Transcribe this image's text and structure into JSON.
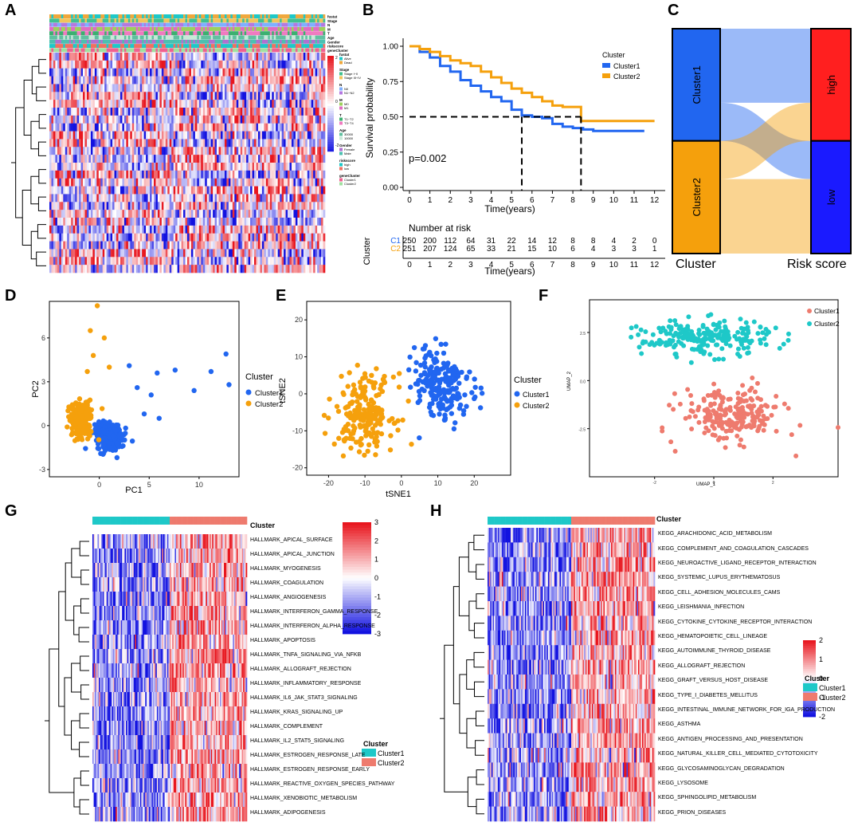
{
  "panels": {
    "A": "A",
    "B": "B",
    "C": "C",
    "D": "D",
    "E": "E",
    "F": "F",
    "G": "G",
    "H": "H"
  },
  "colors": {
    "cluster1": "#2166f0",
    "cluster2": "#f5a00c",
    "teal": "#1ec8c8",
    "salmon": "#ee7b6e",
    "hmHigh": "#e8161e",
    "hmLow": "#1212e0",
    "high": "#ff1f1f",
    "low": "#1a1aff"
  },
  "panelA": {
    "annotation_rows": [
      "fustat",
      "Stage",
      "N",
      "M",
      "T",
      "Age",
      "Gender",
      "riskscore",
      "geneCluster"
    ],
    "legend": [
      {
        "title": "fustat",
        "items": [
          "Alive",
          "Dead"
        ]
      },
      {
        "title": "Stage",
        "items": [
          "Stage I~II",
          "Stage III~IV"
        ]
      },
      {
        "title": "N",
        "items": [
          "N0",
          "N1~N2"
        ]
      },
      {
        "title": "M",
        "items": [
          "M0",
          "M1"
        ]
      },
      {
        "title": "T",
        "items": [
          "T1~T2",
          "T3~T4"
        ]
      },
      {
        "title": "Age",
        "items": [
          "30000",
          "10000"
        ]
      },
      {
        "title": "Gender",
        "items": [
          "Female",
          "Male"
        ]
      },
      {
        "title": "riskscore",
        "items": [
          "high",
          "low"
        ]
      },
      {
        "title": "geneCluster",
        "items": [
          "Cluster1",
          "Cluster2"
        ]
      }
    ],
    "scale_ticks": [
      "2",
      "0",
      "-2"
    ]
  },
  "chart_data": [
    {
      "panel": "B",
      "type": "line",
      "title": "",
      "xlabel": "Time(years)",
      "ylabel": "Survival probability",
      "xlim": [
        0,
        12
      ],
      "ylim": [
        0,
        1
      ],
      "xticks": [
        "0",
        "1",
        "2",
        "3",
        "4",
        "5",
        "6",
        "7",
        "8",
        "9",
        "10",
        "11",
        "12"
      ],
      "yticks": [
        "0.00",
        "0.25",
        "0.50",
        "0.75",
        "1.00"
      ],
      "legend_title": "Cluster",
      "pvalue": "p=0.002",
      "series": [
        {
          "name": "Cluster1",
          "x": [
            0,
            0.5,
            1,
            1.5,
            2,
            2.5,
            3,
            3.5,
            4,
            4.5,
            5,
            5.5,
            6,
            6.5,
            7,
            7.5,
            8,
            8.5,
            9,
            10,
            11,
            11.5
          ],
          "y": [
            1,
            0.96,
            0.92,
            0.86,
            0.82,
            0.76,
            0.72,
            0.68,
            0.64,
            0.61,
            0.55,
            0.51,
            0.5,
            0.49,
            0.45,
            0.43,
            0.42,
            0.41,
            0.4,
            0.4,
            0.4,
            0.4
          ]
        },
        {
          "name": "Cluster2",
          "x": [
            0,
            0.5,
            1,
            1.5,
            2,
            2.5,
            3,
            3.5,
            4,
            4.5,
            5,
            5.5,
            6,
            6.5,
            7,
            7.5,
            8,
            8.4,
            8.5,
            10,
            12
          ],
          "y": [
            1,
            0.98,
            0.96,
            0.93,
            0.9,
            0.88,
            0.86,
            0.82,
            0.78,
            0.74,
            0.7,
            0.67,
            0.64,
            0.61,
            0.58,
            0.57,
            0.57,
            0.47,
            0.47,
            0.47,
            0.47
          ]
        }
      ],
      "median_lines": {
        "y": 0.5,
        "x_cluster1": 5.5,
        "x_cluster2": 8.4
      },
      "risk_table": {
        "title": "Number at risk",
        "ylabel": "Cluster",
        "xlabel": "Time(years)",
        "rows": [
          {
            "name": "C1",
            "values": [
              "250",
              "200",
              "112",
              "64",
              "31",
              "22",
              "14",
              "12",
              "8",
              "8",
              "4",
              "2",
              "0"
            ]
          },
          {
            "name": "C2",
            "values": [
              "251",
              "207",
              "124",
              "65",
              "33",
              "21",
              "15",
              "10",
              "6",
              "4",
              "3",
              "3",
              "1"
            ]
          }
        ]
      }
    },
    {
      "panel": "C",
      "type": "sankey",
      "left_axis": "Cluster",
      "right_axis": "Risk score",
      "left_nodes": [
        {
          "name": "Cluster1",
          "value": 250
        },
        {
          "name": "Cluster2",
          "value": 251
        }
      ],
      "right_nodes": [
        {
          "name": "high",
          "value": 250
        },
        {
          "name": "low",
          "value": 251
        }
      ],
      "flows": [
        {
          "from": "Cluster1",
          "to": "high",
          "value": 165
        },
        {
          "from": "Cluster1",
          "to": "low",
          "value": 85
        },
        {
          "from": "Cluster2",
          "to": "high",
          "value": 85
        },
        {
          "from": "Cluster2",
          "to": "low",
          "value": 166
        }
      ]
    },
    {
      "panel": "D",
      "type": "scatter",
      "xlabel": "PC1",
      "ylabel": "PC2",
      "xlim": [
        -5,
        14
      ],
      "ylim": [
        -3.5,
        8.5
      ],
      "xticks": [
        "0",
        "5",
        "10"
      ],
      "yticks": [
        "-3",
        "0",
        "3",
        "6"
      ],
      "legend_title": "Cluster",
      "legend": [
        "Cluster1",
        "Cluster2"
      ],
      "clusters": [
        {
          "name": "Cluster1",
          "center": [
            1,
            -0.8
          ],
          "spread": [
            1.4,
            0.9
          ],
          "outliers": [
            [
              3,
              4.1
            ],
            [
              4.5,
              0.8
            ],
            [
              5.2,
              2.1
            ],
            [
              6,
              0.5
            ],
            [
              7.6,
              3.8
            ],
            [
              9.5,
              2.4
            ],
            [
              11.2,
              3.7
            ],
            [
              12.7,
              4.9
            ],
            [
              13,
              2.8
            ],
            [
              5.8,
              3.6
            ],
            [
              3.8,
              2.6
            ]
          ]
        },
        {
          "name": "Cluster2",
          "center": [
            -1.8,
            0.4
          ],
          "spread": [
            1.1,
            1.2
          ],
          "outliers": [
            [
              -0.2,
              8.2
            ],
            [
              -0.6,
              4.8
            ],
            [
              -0.9,
              6.5
            ],
            [
              0.5,
              6.0
            ],
            [
              -1.2,
              3.7
            ],
            [
              1.0,
              4.0
            ]
          ]
        }
      ]
    },
    {
      "panel": "E",
      "type": "scatter",
      "xlabel": "tSNE1",
      "ylabel": "tSNE2",
      "xlim": [
        -26,
        30
      ],
      "ylim": [
        -22,
        25
      ],
      "xticks": [
        "-20",
        "-10",
        "0",
        "10",
        "20"
      ],
      "yticks": [
        "-20",
        "-10",
        "0",
        "10",
        "20"
      ],
      "legend_title": "Cluster",
      "legend": [
        "Cluster1",
        "Cluster2"
      ],
      "clusters": [
        {
          "name": "Cluster1",
          "center": [
            11,
            2
          ],
          "spread": [
            8,
            10
          ]
        },
        {
          "name": "Cluster2",
          "center": [
            -10,
            -5
          ],
          "spread": [
            8,
            10
          ]
        }
      ]
    },
    {
      "panel": "F",
      "type": "scatter",
      "xlabel": "UMAP_1",
      "ylabel": "UMAP_2",
      "xlim": [
        -4.2,
        4.2
      ],
      "ylim": [
        -5,
        4.2
      ],
      "xticks": [
        "-2",
        "0",
        "2"
      ],
      "yticks": [
        "-2.5",
        "0.0",
        "2.5"
      ],
      "legend": [
        "Cluster1",
        "Cluster2"
      ],
      "clusters": [
        {
          "name": "Cluster1",
          "center": [
            0.6,
            -1.8
          ],
          "spread": [
            1.7,
            1.4
          ]
        },
        {
          "name": "Cluster2",
          "center": [
            -0.3,
            2.2
          ],
          "spread": [
            2.2,
            0.9
          ]
        }
      ]
    }
  ],
  "panelG": {
    "rows": [
      "HALLMARK_APICAL_SURFACE",
      "HALLMARK_APICAL_JUNCTION",
      "HALLMARK_MYOGENESIS",
      "HALLMARK_COAGULATION",
      "HALLMARK_ANGIOGENESIS",
      "HALLMARK_INTERFERON_GAMMA_RESPONSE",
      "HALLMARK_INTERFERON_ALPHA_RESPONSE",
      "HALLMARK_APOPTOSIS",
      "HALLMARK_TNFA_SIGNALING_VIA_NFKB",
      "HALLMARK_ALLOGRAFT_REJECTION",
      "HALLMARK_INFLAMMATORY_RESPONSE",
      "HALLMARK_IL6_JAK_STAT3_SIGNALING",
      "HALLMARK_KRAS_SIGNALING_UP",
      "HALLMARK_COMPLEMENT",
      "HALLMARK_IL2_STAT5_SIGNALING",
      "HALLMARK_ESTROGEN_RESPONSE_LATE",
      "HALLMARK_ESTROGEN_RESPONSE_EARLY",
      "HALLMARK_REACTIVE_OXYGEN_SPECIES_PATHWAY",
      "HALLMARK_XENOBIOTIC_METABOLISM",
      "HALLMARK_ADIPOGENESIS"
    ],
    "annotation": "Cluster",
    "scale_ticks": [
      "3",
      "2",
      "1",
      "0",
      "-1",
      "-2",
      "-3"
    ],
    "legend_title": "Cluster",
    "legend": [
      "Cluster1",
      "Cluster2"
    ]
  },
  "panelH": {
    "rows": [
      "KEGG_ARACHIDONIC_ACID_METABOLISM",
      "KEGG_COMPLEMENT_AND_COAGULATION_CASCADES",
      "KEGG_NEUROACTIVE_LIGAND_RECEPTOR_INTERACTION",
      "KEGG_SYSTEMIC_LUPUS_ERYTHEMATOSUS",
      "KEGG_CELL_ADHESION_MOLECULES_CAMS",
      "KEGG_LEISHMANIA_INFECTION",
      "KEGG_CYTOKINE_CYTOKINE_RECEPTOR_INTERACTION",
      "KEGG_HEMATOPOIETIC_CELL_LINEAGE",
      "KEGG_AUTOIMMUNE_THYROID_DISEASE",
      "KEGG_ALLOGRAFT_REJECTION",
      "KEGG_GRAFT_VERSUS_HOST_DISEASE",
      "KEGG_TYPE_I_DIABETES_MELLITUS",
      "KEGG_INTESTINAL_IMMUNE_NETWORK_FOR_IGA_PRODUCTION",
      "KEGG_ASTHMA",
      "KEGG_ANTIGEN_PROCESSING_AND_PRESENTATION",
      "KEGG_NATURAL_KILLER_CELL_MEDIATED_CYTOTOXICITY",
      "KEGG_GLYCOSAMINOGLYCAN_DEGRADATION",
      "KEGG_LYSOSOME",
      "KEGG_SPHINGOLIPID_METABOLISM",
      "KEGG_PRION_DISEASES"
    ],
    "annotation": "Cluster",
    "scale_ticks": [
      "2",
      "1",
      "0",
      "-1",
      "-2"
    ],
    "legend_title": "Cluster",
    "legend": [
      "Cluster1",
      "Cluster2"
    ]
  }
}
